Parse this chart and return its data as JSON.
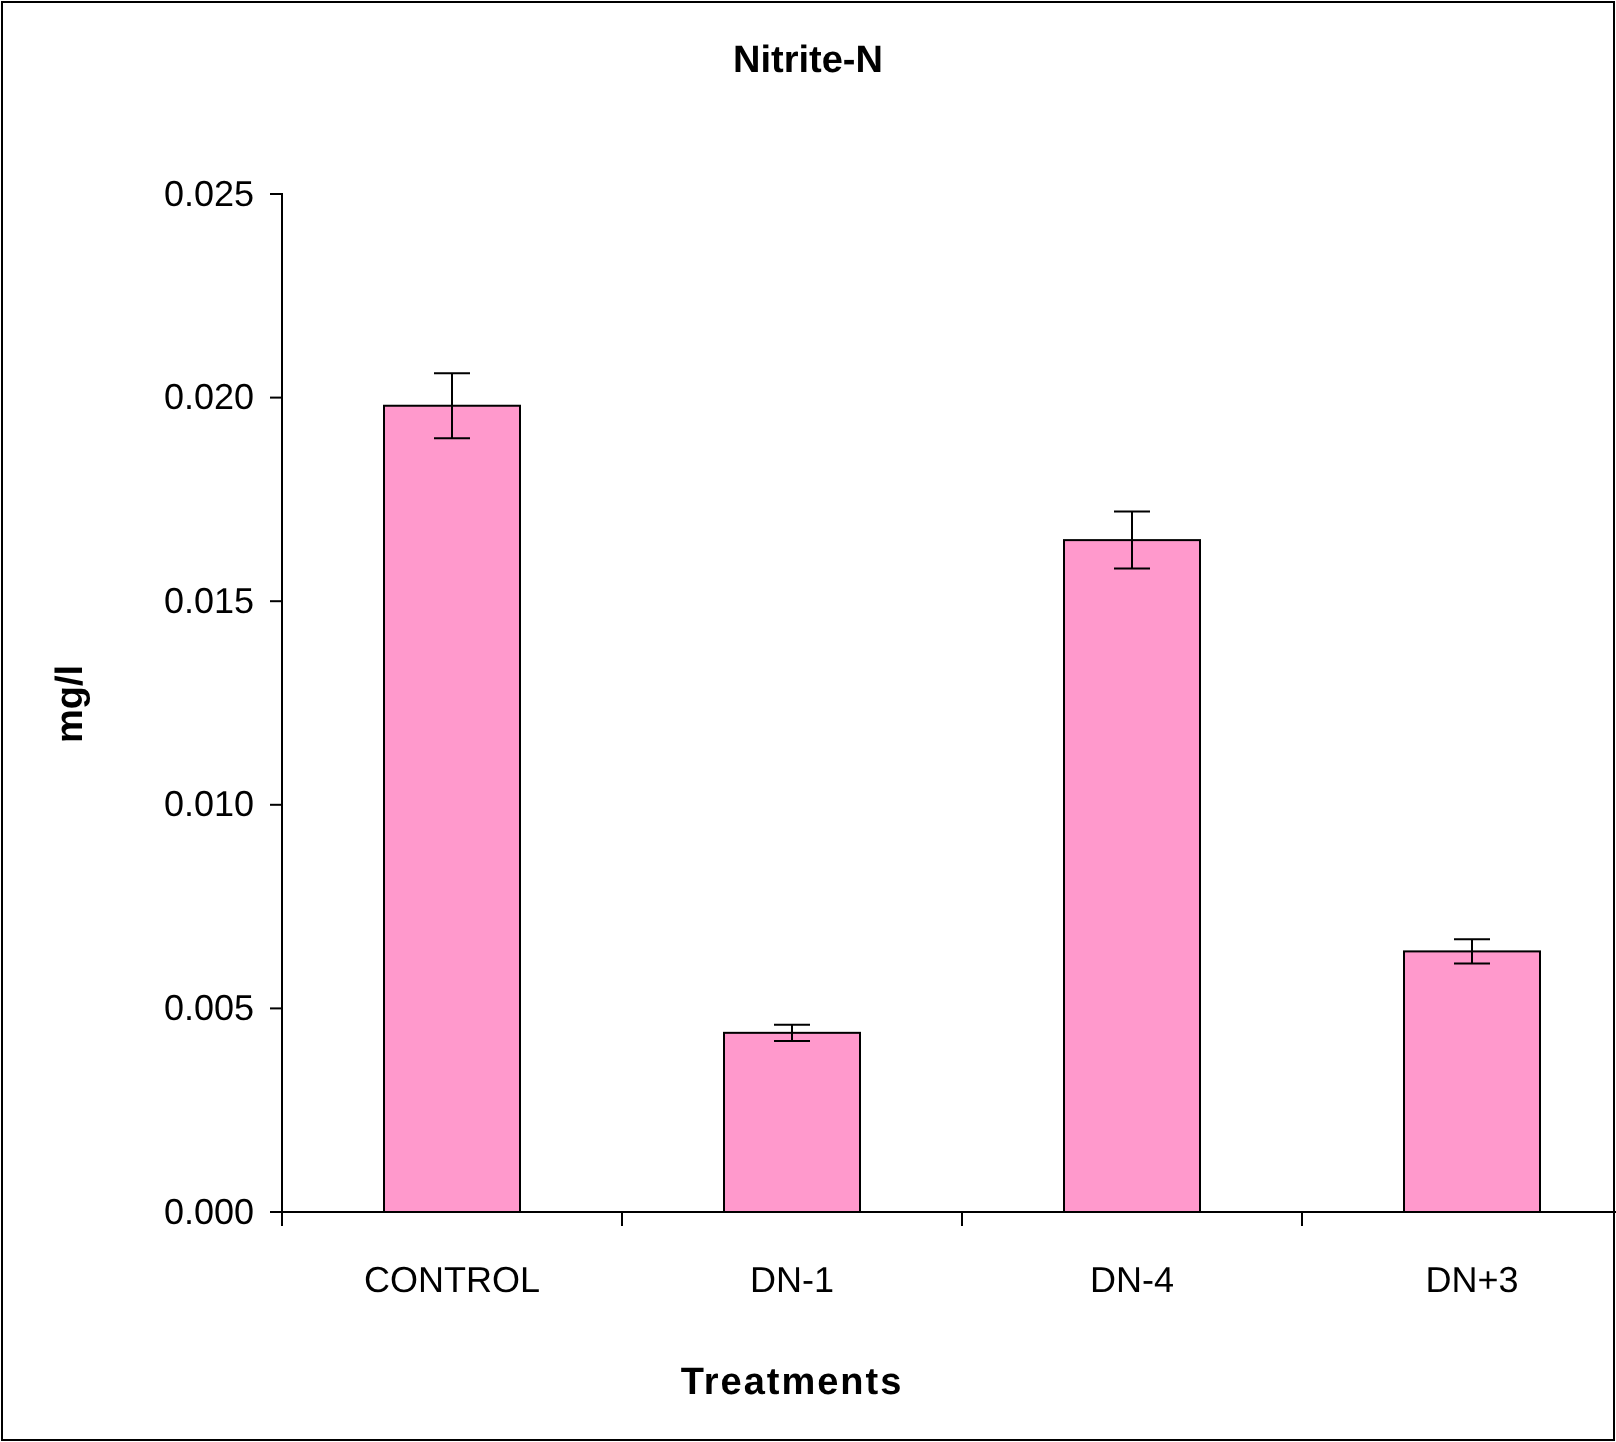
{
  "chart_data": {
    "type": "bar",
    "title": "Nitrite-N",
    "xlabel": "Treatments",
    "ylabel": "mg/l",
    "categories": [
      "CONTROL",
      "DN-1",
      "DN-4",
      "DN+3"
    ],
    "values": [
      0.0198,
      0.0044,
      0.0165,
      0.0064
    ],
    "errors": [
      0.0008,
      0.0002,
      0.0007,
      0.0003
    ],
    "color": "#ff99cc",
    "ylim": [
      0,
      0.025
    ],
    "yticks": [
      {
        "value": 0,
        "label": "0.000"
      },
      {
        "value": 0.005,
        "label": "0.005"
      },
      {
        "value": 0.01,
        "label": "0.010"
      },
      {
        "value": 0.015,
        "label": "0.015"
      },
      {
        "value": 0.02,
        "label": "0.020"
      },
      {
        "value": 0.025,
        "label": "0.025"
      }
    ],
    "grid": false
  }
}
